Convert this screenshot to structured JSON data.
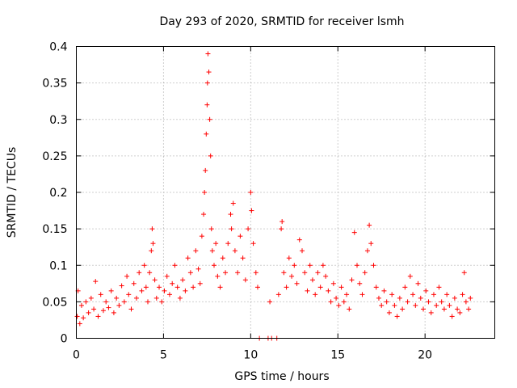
{
  "chart_data": {
    "type": "scatter",
    "title": "Day 293 of 2020, SRMTID for receiver lsmh",
    "xlabel": "GPS time / hours",
    "ylabel": "SRMTID / TECUs",
    "xlim": [
      0,
      24
    ],
    "ylim": [
      0,
      0.4
    ],
    "xticks": [
      0,
      5,
      10,
      15,
      20
    ],
    "xtick_labels": [
      "0",
      "5",
      "10",
      "15",
      "20"
    ],
    "yticks": [
      0,
      0.05,
      0.1,
      0.15,
      0.2,
      0.25,
      0.3,
      0.35,
      0.4
    ],
    "ytick_labels": [
      "0",
      "0.05",
      "0.1",
      "0.15",
      "0.2",
      "0.25",
      "0.3",
      "0.35",
      "0.4"
    ],
    "grid": true,
    "marker": "+",
    "color": "#ff0000",
    "series": [
      {
        "name": "SRMTID",
        "points": [
          [
            0.05,
            0.03
          ],
          [
            0.1,
            0.065
          ],
          [
            0.2,
            0.02
          ],
          [
            0.3,
            0.045
          ],
          [
            0.4,
            0.028
          ],
          [
            0.55,
            0.05
          ],
          [
            0.7,
            0.035
          ],
          [
            0.85,
            0.055
          ],
          [
            1.0,
            0.04
          ],
          [
            1.1,
            0.078
          ],
          [
            1.25,
            0.03
          ],
          [
            1.4,
            0.06
          ],
          [
            1.55,
            0.038
          ],
          [
            1.7,
            0.05
          ],
          [
            1.85,
            0.042
          ],
          [
            2.0,
            0.065
          ],
          [
            2.15,
            0.035
          ],
          [
            2.3,
            0.055
          ],
          [
            2.45,
            0.045
          ],
          [
            2.6,
            0.072
          ],
          [
            2.75,
            0.05
          ],
          [
            2.9,
            0.085
          ],
          [
            3.0,
            0.06
          ],
          [
            3.15,
            0.04
          ],
          [
            3.3,
            0.075
          ],
          [
            3.45,
            0.055
          ],
          [
            3.6,
            0.09
          ],
          [
            3.75,
            0.065
          ],
          [
            3.9,
            0.1
          ],
          [
            4.0,
            0.07
          ],
          [
            4.1,
            0.05
          ],
          [
            4.2,
            0.09
          ],
          [
            4.3,
            0.12
          ],
          [
            4.35,
            0.15
          ],
          [
            4.4,
            0.13
          ],
          [
            4.5,
            0.08
          ],
          [
            4.6,
            0.055
          ],
          [
            4.75,
            0.07
          ],
          [
            4.9,
            0.05
          ],
          [
            5.05,
            0.065
          ],
          [
            5.2,
            0.085
          ],
          [
            5.35,
            0.06
          ],
          [
            5.5,
            0.075
          ],
          [
            5.65,
            0.1
          ],
          [
            5.8,
            0.07
          ],
          [
            5.95,
            0.055
          ],
          [
            6.1,
            0.08
          ],
          [
            6.25,
            0.065
          ],
          [
            6.4,
            0.11
          ],
          [
            6.55,
            0.09
          ],
          [
            6.7,
            0.07
          ],
          [
            6.85,
            0.12
          ],
          [
            7.0,
            0.095
          ],
          [
            7.1,
            0.075
          ],
          [
            7.2,
            0.14
          ],
          [
            7.3,
            0.17
          ],
          [
            7.35,
            0.2
          ],
          [
            7.4,
            0.23
          ],
          [
            7.45,
            0.28
          ],
          [
            7.5,
            0.32
          ],
          [
            7.52,
            0.35
          ],
          [
            7.55,
            0.39
          ],
          [
            7.6,
            0.365
          ],
          [
            7.65,
            0.3
          ],
          [
            7.7,
            0.25
          ],
          [
            7.75,
            0.15
          ],
          [
            7.8,
            0.12
          ],
          [
            7.9,
            0.1
          ],
          [
            8.0,
            0.13
          ],
          [
            8.1,
            0.085
          ],
          [
            8.25,
            0.07
          ],
          [
            8.4,
            0.11
          ],
          [
            8.55,
            0.09
          ],
          [
            8.7,
            0.13
          ],
          [
            8.85,
            0.17
          ],
          [
            8.9,
            0.15
          ],
          [
            9.0,
            0.185
          ],
          [
            9.1,
            0.12
          ],
          [
            9.25,
            0.09
          ],
          [
            9.4,
            0.14
          ],
          [
            9.55,
            0.11
          ],
          [
            9.7,
            0.08
          ],
          [
            9.85,
            0.15
          ],
          [
            10.0,
            0.2
          ],
          [
            10.05,
            0.175
          ],
          [
            10.15,
            0.13
          ],
          [
            10.3,
            0.09
          ],
          [
            10.4,
            0.07
          ],
          [
            10.5,
            0.0
          ],
          [
            11.0,
            0.0
          ],
          [
            11.1,
            0.05
          ],
          [
            11.2,
            0.0
          ],
          [
            11.5,
            0.0
          ],
          [
            11.6,
            0.06
          ],
          [
            11.75,
            0.15
          ],
          [
            11.8,
            0.16
          ],
          [
            11.9,
            0.09
          ],
          [
            12.05,
            0.07
          ],
          [
            12.2,
            0.11
          ],
          [
            12.35,
            0.085
          ],
          [
            12.5,
            0.1
          ],
          [
            12.65,
            0.075
          ],
          [
            12.8,
            0.135
          ],
          [
            12.95,
            0.12
          ],
          [
            13.1,
            0.09
          ],
          [
            13.25,
            0.065
          ],
          [
            13.4,
            0.1
          ],
          [
            13.55,
            0.08
          ],
          [
            13.7,
            0.06
          ],
          [
            13.85,
            0.09
          ],
          [
            14.0,
            0.07
          ],
          [
            14.15,
            0.1
          ],
          [
            14.3,
            0.085
          ],
          [
            14.45,
            0.065
          ],
          [
            14.6,
            0.05
          ],
          [
            14.75,
            0.075
          ],
          [
            14.9,
            0.055
          ],
          [
            15.05,
            0.045
          ],
          [
            15.2,
            0.07
          ],
          [
            15.35,
            0.05
          ],
          [
            15.5,
            0.06
          ],
          [
            15.65,
            0.04
          ],
          [
            15.8,
            0.08
          ],
          [
            15.95,
            0.145
          ],
          [
            16.1,
            0.1
          ],
          [
            16.25,
            0.075
          ],
          [
            16.4,
            0.06
          ],
          [
            16.55,
            0.09
          ],
          [
            16.7,
            0.12
          ],
          [
            16.8,
            0.155
          ],
          [
            16.9,
            0.13
          ],
          [
            17.05,
            0.1
          ],
          [
            17.2,
            0.07
          ],
          [
            17.35,
            0.055
          ],
          [
            17.5,
            0.045
          ],
          [
            17.65,
            0.065
          ],
          [
            17.8,
            0.05
          ],
          [
            17.95,
            0.035
          ],
          [
            18.1,
            0.06
          ],
          [
            18.25,
            0.045
          ],
          [
            18.4,
            0.03
          ],
          [
            18.55,
            0.055
          ],
          [
            18.7,
            0.04
          ],
          [
            18.85,
            0.07
          ],
          [
            19.0,
            0.05
          ],
          [
            19.15,
            0.085
          ],
          [
            19.3,
            0.06
          ],
          [
            19.45,
            0.045
          ],
          [
            19.6,
            0.075
          ],
          [
            19.75,
            0.055
          ],
          [
            19.9,
            0.04
          ],
          [
            20.05,
            0.065
          ],
          [
            20.2,
            0.05
          ],
          [
            20.35,
            0.035
          ],
          [
            20.5,
            0.06
          ],
          [
            20.65,
            0.045
          ],
          [
            20.8,
            0.07
          ],
          [
            20.95,
            0.05
          ],
          [
            21.1,
            0.04
          ],
          [
            21.25,
            0.06
          ],
          [
            21.4,
            0.045
          ],
          [
            21.55,
            0.03
          ],
          [
            21.7,
            0.055
          ],
          [
            21.85,
            0.04
          ],
          [
            22.0,
            0.035
          ],
          [
            22.15,
            0.06
          ],
          [
            22.25,
            0.09
          ],
          [
            22.35,
            0.05
          ],
          [
            22.5,
            0.04
          ],
          [
            22.6,
            0.055
          ]
        ]
      }
    ]
  }
}
